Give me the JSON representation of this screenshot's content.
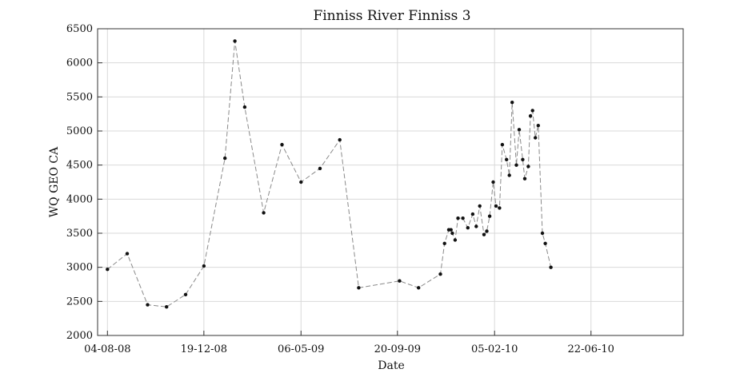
{
  "chart_data": {
    "type": "line",
    "title": "Finniss River Finniss 3",
    "xlabel": "Date",
    "ylabel": "WQ GEO CA",
    "ylim": [
      2000,
      6500
    ],
    "xlim": [
      "2008-07-21",
      "2010-10-31"
    ],
    "grid": true,
    "line_style": "dashed",
    "colors": {
      "line": "#8a8a8a",
      "marker": "#111111",
      "grid": "#d9d9d9",
      "axes": "#333333"
    },
    "x_ticks": [
      {
        "date": "2008-08-04",
        "label": "04-08-08"
      },
      {
        "date": "2008-12-19",
        "label": "19-12-08"
      },
      {
        "date": "2009-05-06",
        "label": "06-05-09"
      },
      {
        "date": "2009-09-20",
        "label": "20-09-09"
      },
      {
        "date": "2010-02-05",
        "label": "05-02-10"
      },
      {
        "date": "2010-06-22",
        "label": "22-06-10"
      }
    ],
    "y_ticks": [
      2000,
      2500,
      3000,
      3500,
      4000,
      4500,
      5000,
      5500,
      6000,
      6500
    ],
    "series": [
      {
        "x": [
          "2008-08-04",
          "2008-09-01",
          "2008-09-30",
          "2008-10-27",
          "2008-11-23",
          "2008-12-19",
          "2009-01-18",
          "2009-02-01",
          "2009-02-15",
          "2009-03-14",
          "2009-04-09",
          "2009-05-06",
          "2009-06-02",
          "2009-06-30",
          "2009-07-27",
          "2009-09-23",
          "2009-10-20",
          "2009-11-20",
          "2009-11-26",
          "2009-12-02",
          "2009-12-05",
          "2009-12-07",
          "2009-12-11",
          "2009-12-15",
          "2009-12-22",
          "2009-12-29",
          "2010-01-05",
          "2010-01-10",
          "2010-01-15",
          "2010-01-21",
          "2010-01-25",
          "2010-01-29",
          "2010-02-03",
          "2010-02-07",
          "2010-02-12",
          "2010-02-16",
          "2010-02-22",
          "2010-02-26",
          "2010-03-02",
          "2010-03-08",
          "2010-03-12",
          "2010-03-17",
          "2010-03-20",
          "2010-03-25",
          "2010-03-28",
          "2010-03-31",
          "2010-04-04",
          "2010-04-08",
          "2010-04-14",
          "2010-04-18",
          "2010-04-26"
        ],
        "y": [
          2970,
          3200,
          2450,
          2420,
          2600,
          3020,
          4600,
          6320,
          5350,
          3800,
          4800,
          4250,
          4450,
          4870,
          2700,
          2800,
          2700,
          2900,
          3350,
          3550,
          3550,
          3500,
          3400,
          3720,
          3720,
          3580,
          3780,
          3600,
          3900,
          3480,
          3530,
          3750,
          4250,
          3900,
          3870,
          4800,
          4580,
          4350,
          5420,
          4500,
          5020,
          4580,
          4300,
          4480,
          5220,
          5300,
          4900,
          5080,
          3500,
          3350,
          3000
        ]
      }
    ]
  },
  "title": "Finniss River Finniss 3",
  "xlabel": "Date",
  "ylabel": "WQ GEO CA"
}
